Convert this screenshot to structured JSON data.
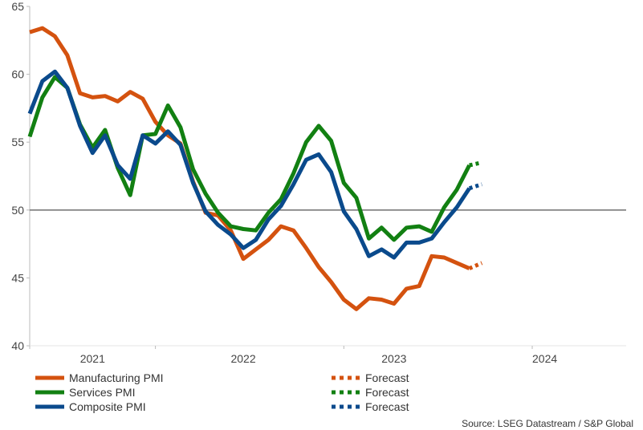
{
  "chart_data": {
    "type": "line",
    "ylim": [
      40,
      65
    ],
    "yticks": [
      40,
      45,
      50,
      55,
      60,
      65
    ],
    "reference_line": 50,
    "xlim": [
      2020.583,
      2024.54
    ],
    "year_labels": [
      {
        "label": "2021",
        "x": 2021.0
      },
      {
        "label": "2022",
        "x": 2022.0
      },
      {
        "label": "2023",
        "x": 2023.0
      },
      {
        "label": "2024",
        "x": 2024.0
      }
    ],
    "year_separators": [
      2020.583,
      2021.417,
      2022.667,
      2023.917
    ],
    "series": [
      {
        "name": "Manufacturing PMI",
        "color": "#d4520f",
        "values": [
          [
            2020.583,
            63.1
          ],
          [
            2020.667,
            63.4
          ],
          [
            2020.75,
            62.8
          ],
          [
            2020.833,
            61.4
          ],
          [
            2020.917,
            58.6
          ],
          [
            2021.0,
            58.3
          ],
          [
            2021.083,
            58.4
          ],
          [
            2021.167,
            58.0
          ],
          [
            2021.25,
            58.7
          ],
          [
            2021.333,
            58.2
          ],
          [
            2021.417,
            56.5
          ],
          [
            2021.5,
            55.5
          ],
          [
            2021.583,
            54.9
          ],
          [
            2021.667,
            52.1
          ],
          [
            2021.75,
            49.8
          ],
          [
            2021.833,
            49.6
          ],
          [
            2021.917,
            48.5
          ],
          [
            2022.0,
            46.4
          ],
          [
            2022.083,
            47.1
          ],
          [
            2022.167,
            47.8
          ],
          [
            2022.25,
            48.8
          ],
          [
            2022.333,
            48.5
          ],
          [
            2022.417,
            47.2
          ],
          [
            2022.5,
            45.8
          ],
          [
            2022.583,
            44.7
          ],
          [
            2022.667,
            43.4
          ],
          [
            2022.75,
            42.7
          ],
          [
            2022.833,
            43.5
          ],
          [
            2022.917,
            43.4
          ],
          [
            2023.0,
            43.1
          ],
          [
            2023.083,
            44.2
          ],
          [
            2023.167,
            44.4
          ],
          [
            2023.25,
            46.6
          ],
          [
            2023.333,
            46.5
          ],
          [
            2023.417,
            46.1
          ],
          [
            2023.5,
            45.7
          ]
        ],
        "forecast_label": "Forecast",
        "forecast": [
          [
            2023.5,
            45.7
          ],
          [
            2023.583,
            46.1
          ]
        ]
      },
      {
        "name": "Services PMI",
        "color": "#128012",
        "values": [
          [
            2020.583,
            55.4
          ],
          [
            2020.667,
            58.3
          ],
          [
            2020.75,
            59.8
          ],
          [
            2020.833,
            59.0
          ],
          [
            2020.917,
            56.3
          ],
          [
            2021.0,
            54.6
          ],
          [
            2021.083,
            55.9
          ],
          [
            2021.167,
            53.1
          ],
          [
            2021.25,
            51.1
          ],
          [
            2021.333,
            55.5
          ],
          [
            2021.417,
            55.6
          ],
          [
            2021.5,
            57.7
          ],
          [
            2021.583,
            56.1
          ],
          [
            2021.667,
            53.0
          ],
          [
            2021.75,
            51.2
          ],
          [
            2021.833,
            49.8
          ],
          [
            2021.917,
            48.8
          ],
          [
            2022.0,
            48.6
          ],
          [
            2022.083,
            48.5
          ],
          [
            2022.167,
            49.8
          ],
          [
            2022.25,
            50.8
          ],
          [
            2022.333,
            52.7
          ],
          [
            2022.417,
            55.0
          ],
          [
            2022.5,
            56.2
          ],
          [
            2022.583,
            55.1
          ],
          [
            2022.667,
            52.0
          ],
          [
            2022.75,
            50.9
          ],
          [
            2022.833,
            47.9
          ],
          [
            2022.917,
            48.7
          ],
          [
            2023.0,
            47.8
          ],
          [
            2023.083,
            48.7
          ],
          [
            2023.167,
            48.8
          ],
          [
            2023.25,
            48.4
          ],
          [
            2023.333,
            50.2
          ],
          [
            2023.417,
            51.5
          ],
          [
            2023.5,
            53.3
          ]
        ],
        "forecast_label": "Forecast",
        "forecast": [
          [
            2023.5,
            53.3
          ],
          [
            2023.583,
            53.5
          ]
        ]
      },
      {
        "name": "Composite PMI",
        "color": "#0a4a8c",
        "values": [
          [
            2020.583,
            57.1
          ],
          [
            2020.667,
            59.5
          ],
          [
            2020.75,
            60.2
          ],
          [
            2020.833,
            59.0
          ],
          [
            2020.917,
            56.2
          ],
          [
            2021.0,
            54.2
          ],
          [
            2021.083,
            55.5
          ],
          [
            2021.167,
            53.3
          ],
          [
            2021.25,
            52.3
          ],
          [
            2021.333,
            55.5
          ],
          [
            2021.417,
            54.9
          ],
          [
            2021.5,
            55.8
          ],
          [
            2021.583,
            54.8
          ],
          [
            2021.667,
            52.0
          ],
          [
            2021.75,
            49.9
          ],
          [
            2021.833,
            48.9
          ],
          [
            2021.917,
            48.2
          ],
          [
            2022.0,
            47.2
          ],
          [
            2022.083,
            47.8
          ],
          [
            2022.167,
            49.3
          ],
          [
            2022.25,
            50.3
          ],
          [
            2022.333,
            51.9
          ],
          [
            2022.417,
            53.7
          ],
          [
            2022.5,
            54.1
          ],
          [
            2022.583,
            52.8
          ],
          [
            2022.667,
            49.9
          ],
          [
            2022.75,
            48.6
          ],
          [
            2022.833,
            46.6
          ],
          [
            2022.917,
            47.1
          ],
          [
            2023.0,
            46.5
          ],
          [
            2023.083,
            47.6
          ],
          [
            2023.167,
            47.6
          ],
          [
            2023.25,
            47.9
          ],
          [
            2023.333,
            49.1
          ],
          [
            2023.417,
            50.2
          ],
          [
            2023.5,
            51.6
          ]
        ],
        "forecast_label": "Forecast",
        "forecast": [
          [
            2023.5,
            51.6
          ],
          [
            2023.583,
            51.9
          ]
        ]
      }
    ],
    "grid": false,
    "legend_position": "bottom"
  },
  "source_text": "Source: LSEG Datastream / S&P Global"
}
